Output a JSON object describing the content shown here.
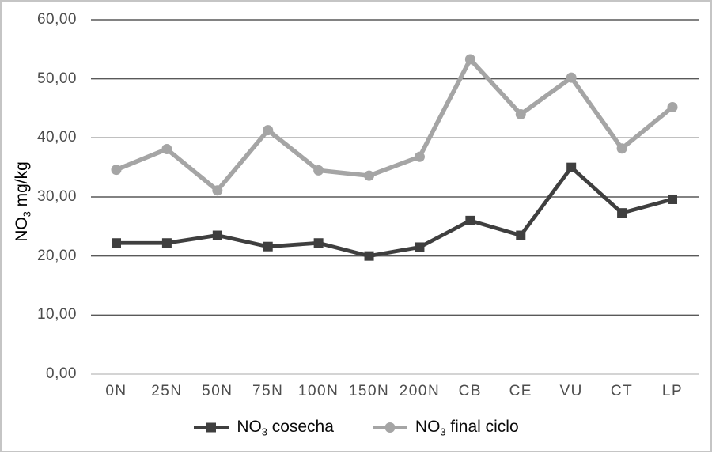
{
  "chart_data": {
    "type": "line",
    "title": "",
    "categories": [
      "0N",
      "25N",
      "50N",
      "75N",
      "100N",
      "150N",
      "200N",
      "CB",
      "CE",
      "VU",
      "CT",
      "LP"
    ],
    "series": [
      {
        "name": "NO3 cosecha",
        "label": {
          "prefix": "NO",
          "sub": "3",
          "suffix": " cosecha"
        },
        "color": "#3f3f3f",
        "marker": "square",
        "line_width": 4.8,
        "values": [
          22.2,
          22.2,
          23.5,
          21.6,
          22.2,
          20.0,
          21.5,
          26.0,
          23.5,
          35.0,
          27.3,
          29.6
        ]
      },
      {
        "name": "NO3 final ciclo",
        "label": {
          "prefix": "NO",
          "sub": "3",
          "suffix": " final ciclo"
        },
        "color": "#a5a5a5",
        "marker": "circle",
        "line_width": 5.6,
        "values": [
          34.6,
          38.1,
          31.1,
          41.3,
          34.5,
          33.6,
          36.8,
          53.3,
          44.0,
          50.2,
          38.2,
          45.2
        ]
      }
    ],
    "y_axis": {
      "title": {
        "prefix": "NO",
        "sub": "3",
        "suffix": " mg/kg"
      },
      "range": [
        0,
        60
      ],
      "ticks": [
        {
          "v": 0,
          "label": "0,00"
        },
        {
          "v": 10,
          "label": "10,00"
        },
        {
          "v": 20,
          "label": "20,00"
        },
        {
          "v": 30,
          "label": "30,00"
        },
        {
          "v": 40,
          "label": "40,00"
        },
        {
          "v": 50,
          "label": "50,00"
        },
        {
          "v": 60,
          "label": "60,00"
        }
      ]
    },
    "grid": {
      "on": true,
      "line_color": "#595959",
      "zero_line_color": "#c6c6c6"
    },
    "legend_position": "bottom",
    "colors": {
      "background": "#ffffff",
      "frame_border": "#c5c5c5",
      "tick_text": "#4d4d4d",
      "title_text": "#000000"
    }
  }
}
